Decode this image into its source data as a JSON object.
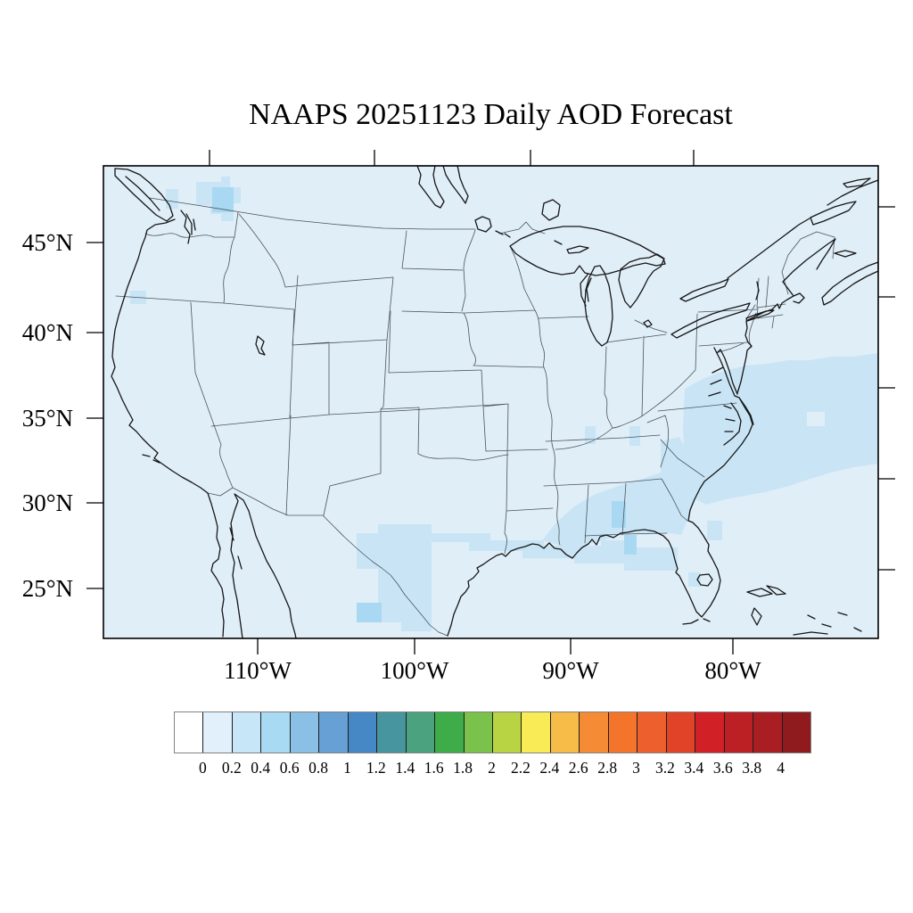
{
  "title": "NAAPS 20251123 Daily AOD Forecast",
  "map": {
    "region_label": "Contiguous United States with state boundaries",
    "background_color": "#E0EEF8",
    "aod_low_color": "#C9E5F5",
    "aod_mid_color": "#A9D8F2",
    "coastline_color": "#161616",
    "state_border_color": "#49545D",
    "frame_color": "#000000",
    "tick_color": "#000000"
  },
  "y_axis": {
    "labels": [
      "45°N",
      "40°N",
      "35°N",
      "30°N",
      "25°N"
    ]
  },
  "x_axis": {
    "labels": [
      "110°W",
      "100°W",
      "90°W",
      "80°W"
    ]
  },
  "colorbar": {
    "tick_labels": [
      "0",
      "0.2",
      "0.4",
      "0.6",
      "0.8",
      "1",
      "1.2",
      "1.4",
      "1.6",
      "1.8",
      "2",
      "2.2",
      "2.4",
      "2.6",
      "2.8",
      "3",
      "3.2",
      "3.4",
      "3.6",
      "3.8",
      "4"
    ],
    "colors": [
      "#FFFFFF",
      "#E1F0FA",
      "#C7E6F8",
      "#A8DAF4",
      "#8AC0E5",
      "#66A0D4",
      "#4687C6",
      "#47969F",
      "#4BA27E",
      "#3EAC49",
      "#7BC24C",
      "#B8D443",
      "#F9EB55",
      "#F6BC47",
      "#F58B35",
      "#F4742B",
      "#ED5F2C",
      "#E04328",
      "#D22027",
      "#BC2025",
      "#A81E23",
      "#8F1B1E"
    ]
  },
  "chart_data": {
    "type": "heatmap",
    "title": "NAAPS 20251123 Daily AOD Forecast",
    "model": "NAAPS",
    "forecast_date": "20251123",
    "quantity": "Daily Aerosol Optical Depth (AOD)",
    "x_axis_ticks": [
      "110°W",
      "100°W",
      "90°W",
      "80°W"
    ],
    "y_axis_ticks": [
      "45°N",
      "40°N",
      "35°N",
      "30°N",
      "25°N"
    ],
    "colorbar_range": [
      0,
      4
    ],
    "colorbar_step": 0.2,
    "colorbar_position": "bottom",
    "grid": "off",
    "observations": [
      {
        "area": "most of CONUS interior and surrounding waters",
        "aod": "0.0-0.1"
      },
      {
        "area": "Washington-Idaho border (panhandle patch)",
        "aod": "0.1-0.3"
      },
      {
        "area": "small spot in southern Oregon",
        "aod": "0.1-0.2"
      },
      {
        "area": "central and southern Texas",
        "aod": "0.1-0.3"
      },
      {
        "area": "Gulf Coast band from Texas to the Florida panhandle",
        "aod": "0.1-0.2"
      },
      {
        "area": "band across Alabama-Georgia-Carolinas",
        "aod": "0.1-0.3"
      },
      {
        "area": "western Atlantic off Virginia and the Carolinas",
        "aod": "0.1-0.2"
      },
      {
        "area": "small spots over Florida and Tennessee",
        "aod": "0.1-0.2"
      }
    ]
  }
}
